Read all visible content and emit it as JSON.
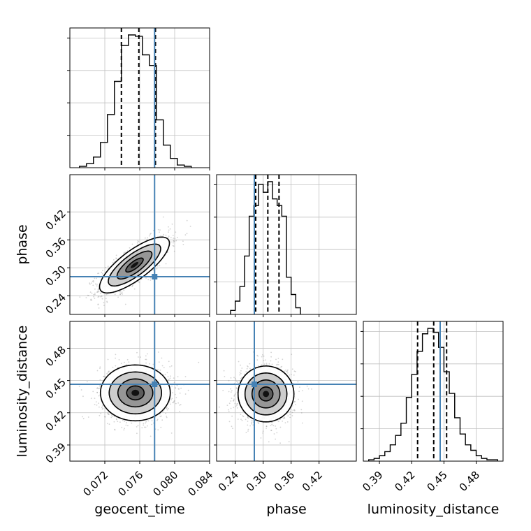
{
  "chart_data": {
    "type": "corner",
    "params": [
      {
        "name": "geocent_time",
        "label": "geocent_time",
        "range": [
          0.068,
          0.084
        ],
        "ticks": [
          0.072,
          0.076,
          0.08,
          0.084
        ],
        "tick_labels": [
          "0.072",
          "0.076",
          "0.080",
          "0.084"
        ],
        "truth": 0.0777,
        "quantiles": [
          0.0739,
          0.0759,
          0.0778
        ]
      },
      {
        "name": "phase",
        "label": "phase",
        "range": [
          0.2,
          0.5
        ],
        "ticks": [
          0.24,
          0.3,
          0.36,
          0.42
        ],
        "tick_labels": [
          "0.24",
          "0.30",
          "0.36",
          "0.42"
        ],
        "truth": 0.281,
        "quantiles": [
          0.284,
          0.31,
          0.334
        ]
      },
      {
        "name": "luminosity_distance",
        "label": "luminosity_distance",
        "range": [
          0.375,
          0.505
        ],
        "ticks": [
          0.39,
          0.42,
          0.45,
          0.48
        ],
        "tick_labels": [
          "0.39",
          "0.42",
          "0.45",
          "0.48"
        ],
        "truth": 0.4465,
        "quantiles": [
          0.4255,
          0.4405,
          0.4525
        ]
      }
    ],
    "histograms": [
      {
        "param": "geocent_time",
        "bin_edges": [
          0.0691,
          0.0699,
          0.0707,
          0.0715,
          0.0723,
          0.0731,
          0.0739,
          0.0747,
          0.0755,
          0.0763,
          0.0771,
          0.0779,
          0.0787,
          0.0795,
          0.0803,
          0.0811,
          0.0819
        ],
        "counts": [
          1,
          3,
          8,
          19,
          40,
          65,
          92,
          100,
          99,
          85,
          77,
          36,
          17,
          7,
          2,
          1
        ]
      },
      {
        "param": "phase",
        "bin_edges": [
          0.23,
          0.24,
          0.25,
          0.26,
          0.27,
          0.28,
          0.29,
          0.3,
          0.31,
          0.32,
          0.33,
          0.34,
          0.35,
          0.36,
          0.37,
          0.38
        ],
        "counts": [
          3,
          10,
          21,
          44,
          74,
          82,
          98,
          92,
          100,
          87,
          82,
          74,
          28,
          15,
          5
        ]
      },
      {
        "param": "luminosity_distance",
        "bin_edges": [
          0.38,
          0.385,
          0.39,
          0.395,
          0.4,
          0.405,
          0.41,
          0.415,
          0.42,
          0.425,
          0.43,
          0.435,
          0.44,
          0.445,
          0.45,
          0.455,
          0.46,
          0.465,
          0.47,
          0.475,
          0.48,
          0.485,
          0.49,
          0.495,
          0.5
        ],
        "counts": [
          1,
          2,
          4,
          7,
          12,
          19,
          28,
          47,
          64,
          81,
          94,
          98,
          95,
          84,
          66,
          50,
          32,
          20,
          12,
          8,
          4,
          2,
          1,
          1
        ]
      }
    ],
    "joint": [
      {
        "x": "geocent_time",
        "y": "phase",
        "center": [
          0.0754,
          0.306
        ],
        "sigma": [
          0.002,
          0.03
        ],
        "rho": 0.78
      },
      {
        "x": "geocent_time",
        "y": "luminosity_distance",
        "center": [
          0.0755,
          0.4385
        ],
        "sigma": [
          0.002,
          0.013
        ],
        "rho": 0.0
      },
      {
        "x": "phase",
        "y": "luminosity_distance",
        "center": [
          0.306,
          0.4375
        ],
        "sigma": [
          0.03,
          0.013
        ],
        "rho": 0.0
      }
    ],
    "contour_levels_sigma": [
      0.5,
      1.0,
      1.5,
      2.0
    ],
    "colors": {
      "truth": "#4682b4",
      "contour": "#000000",
      "grid": "#c0c0c0",
      "points": "#808080"
    },
    "grid": true
  }
}
